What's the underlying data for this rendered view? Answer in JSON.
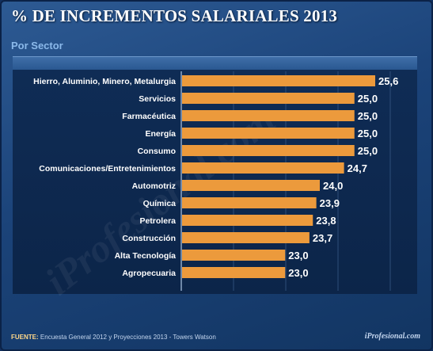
{
  "header": {
    "title": "% DE INCREMENTOS SALARIALES 2013",
    "subtitle": "Por Sector"
  },
  "watermark_text": "iProfesional.com",
  "footer": {
    "source_label": "FUENTE:",
    "source_text": "Encuesta General 2012 y Proyecciones 2013 - Towers Watson",
    "brand": "iProfesional.com"
  },
  "colors": {
    "bar": "#ec9a3c",
    "value_text": "#ffffff",
    "category_text": "#ffffff"
  },
  "chart_data": {
    "type": "bar",
    "orientation": "horizontal",
    "title": "% DE INCREMENTOS SALARIALES 2013",
    "subtitle": "Por Sector",
    "categories": [
      "Hierro, Aluminio, Minero, Metalurgia",
      "Servicios",
      "Farmacéutica",
      "Energía",
      "Consumo",
      "Comunicaciones/Entretenimientos",
      "Automotriz",
      "Química",
      "Petrolera",
      "Construcción",
      "Alta Tecnología",
      "Agropecuaria"
    ],
    "values": [
      25.6,
      25.0,
      25.0,
      25.0,
      25.0,
      24.7,
      24.0,
      23.9,
      23.8,
      23.7,
      23.0,
      23.0
    ],
    "value_labels": [
      "25,6",
      "25,0",
      "25,0",
      "25,0",
      "25,0",
      "24,7",
      "24,0",
      "23,9",
      "23,8",
      "23,7",
      "23,0",
      "23,0"
    ],
    "xlim": [
      20.0,
      25.6
    ],
    "grid": true
  }
}
